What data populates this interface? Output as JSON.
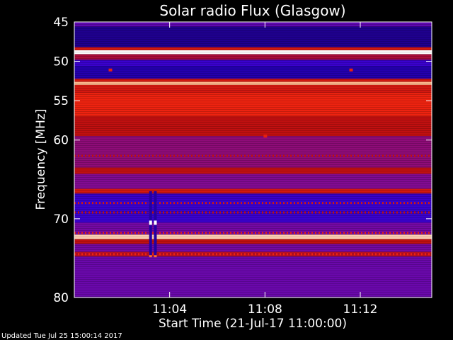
{
  "chart_data": {
    "type": "heatmap",
    "title": "Solar radio Flux (Glasgow)",
    "xlabel": "Start Time (21-Jul-17 11:00:00)",
    "ylabel": "Frequency [MHz]",
    "x_unit": "minutes after 11:00:00",
    "xlim": [
      0,
      15
    ],
    "ylim": [
      45,
      80
    ],
    "y_inverted": true,
    "x_ticks": [
      {
        "value": 4,
        "label": "11:04"
      },
      {
        "value": 8,
        "label": "11:08"
      },
      {
        "value": 12,
        "label": "11:12"
      }
    ],
    "y_ticks": [
      {
        "value": 45,
        "label": "45"
      },
      {
        "value": 50,
        "label": "50"
      },
      {
        "value": 55,
        "label": "55"
      },
      {
        "value": 60,
        "label": "60"
      },
      {
        "value": 70,
        "label": "70"
      },
      {
        "value": 80,
        "label": "80"
      }
    ],
    "colormap": [
      "#1a0070",
      "#2a00d8",
      "#7a0aa0",
      "#c01010",
      "#ff2a10",
      "#ffb080",
      "#ffffff"
    ],
    "bands": [
      {
        "f_start": 45.0,
        "f_end": 45.6,
        "level": 0.28
      },
      {
        "f_start": 45.6,
        "f_end": 48.2,
        "level": 0.05
      },
      {
        "f_start": 48.2,
        "f_end": 48.6,
        "level": 0.55
      },
      {
        "f_start": 48.6,
        "f_end": 49.1,
        "level": 1.0
      },
      {
        "f_start": 49.1,
        "f_end": 49.8,
        "level": 0.45
      },
      {
        "f_start": 49.8,
        "f_end": 50.6,
        "level": 0.2
      },
      {
        "f_start": 50.6,
        "f_end": 52.2,
        "level": 0.1
      },
      {
        "f_start": 52.2,
        "f_end": 52.6,
        "level": 0.55
      },
      {
        "f_start": 52.6,
        "f_end": 53.0,
        "level": 0.85
      },
      {
        "f_start": 53.0,
        "f_end": 54.0,
        "level": 0.55
      },
      {
        "f_start": 54.0,
        "f_end": 57.0,
        "level": 0.62
      },
      {
        "f_start": 57.0,
        "f_end": 59.5,
        "level": 0.5
      },
      {
        "f_start": 59.5,
        "f_end": 63.5,
        "level": 0.38
      },
      {
        "f_start": 63.5,
        "f_end": 64.3,
        "level": 0.5
      },
      {
        "f_start": 64.3,
        "f_end": 66.2,
        "level": 0.35
      },
      {
        "f_start": 66.2,
        "f_end": 66.8,
        "level": 0.55
      },
      {
        "f_start": 66.8,
        "f_end": 70.5,
        "level": 0.2
      },
      {
        "f_start": 70.5,
        "f_end": 72.0,
        "level": 0.32
      },
      {
        "f_start": 72.0,
        "f_end": 72.6,
        "level": 0.9
      },
      {
        "f_start": 72.6,
        "f_end": 73.2,
        "level": 0.5
      },
      {
        "f_start": 73.2,
        "f_end": 74.2,
        "level": 0.32
      },
      {
        "f_start": 74.2,
        "f_end": 74.8,
        "level": 0.48
      },
      {
        "f_start": 74.8,
        "f_end": 80.0,
        "level": 0.3
      }
    ],
    "dotted_lines": [
      {
        "freq": 62.0,
        "level": 0.5
      },
      {
        "freq": 68.0,
        "level": 0.55
      },
      {
        "freq": 69.2,
        "level": 0.5
      },
      {
        "freq": 71.8,
        "level": 0.6
      },
      {
        "freq": 74.5,
        "level": 0.62
      }
    ],
    "events": [
      {
        "t": 3.2,
        "f_start": 66.5,
        "f_end": 74.8,
        "level": 0.08,
        "accent_freq": 70.5
      },
      {
        "t": 3.4,
        "f_start": 66.5,
        "f_end": 74.8,
        "level": 0.08,
        "accent_freq": 70.5
      }
    ],
    "hotspots": [
      {
        "t": 1.5,
        "f": 51.1,
        "level": 0.6
      },
      {
        "t": 8.0,
        "f": 59.5,
        "level": 0.6
      },
      {
        "t": 11.6,
        "f": 51.1,
        "level": 0.6
      }
    ]
  },
  "footer": {
    "updated": "Updated Tue Jul 25 15:00:14 2017"
  }
}
